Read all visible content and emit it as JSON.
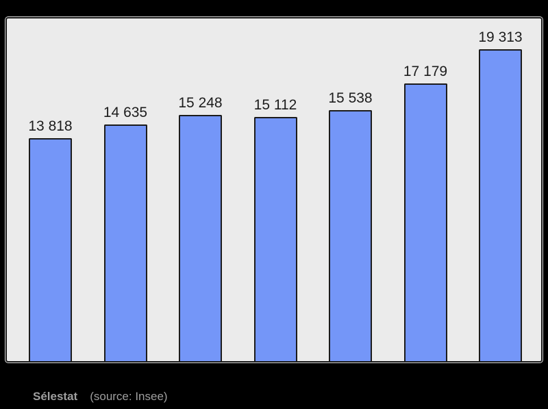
{
  "page": {
    "background": "#000000"
  },
  "chart_data": {
    "type": "bar",
    "title": "",
    "values": [
      13818,
      14635,
      15248,
      15112,
      15538,
      17179,
      19313
    ],
    "display_labels": [
      "13 818",
      "14 635",
      "15 248",
      "15 112",
      "15 538",
      "17 179",
      "19 313"
    ],
    "categories": [],
    "x_axis_labels_visible": false,
    "y_axis_visible": false,
    "grid": false,
    "legend": false,
    "value_labels_position": "above-bars",
    "ylim": [
      0,
      21200
    ],
    "bar_color": "#7496f8",
    "bar_border_color": "#1b1b1b",
    "plot_background": "#ebebeb"
  },
  "caption": {
    "name": "Sélestat",
    "source": "(source: Insee)"
  }
}
